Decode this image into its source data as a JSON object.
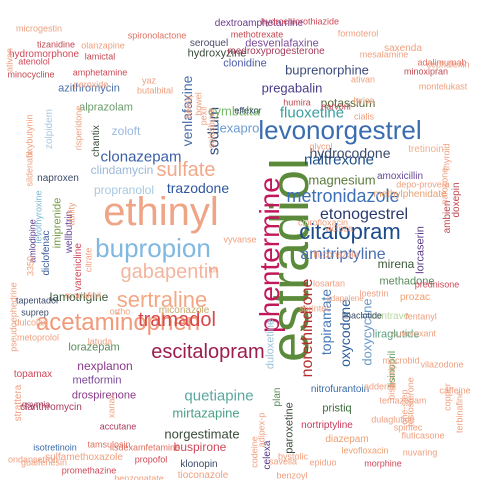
{
  "words": [
    {
      "text": "estradiol",
      "color": "#5a8a3a"
    },
    {
      "text": "ethinyl",
      "color": "#f0a486"
    },
    {
      "text": "levonorgestrel",
      "color": "#3a6db0"
    },
    {
      "text": "phentermine",
      "color": "#c2185b"
    },
    {
      "text": "bupropion",
      "color": "#80b8e0"
    },
    {
      "text": "gabapentin",
      "color": "#f2b6a0"
    },
    {
      "text": "acetaminophen",
      "color": "#f09a7a"
    },
    {
      "text": "sertraline",
      "color": "#f4a784"
    },
    {
      "text": "escitalopram",
      "color": "#9c1c4e"
    },
    {
      "text": "sulfate",
      "color": "#f2a98b"
    },
    {
      "text": "tramadol",
      "color": "#d94848"
    },
    {
      "text": "citalopram",
      "color": "#1a4a8a"
    },
    {
      "text": "etonogestrel",
      "color": "#2b3a6e"
    },
    {
      "text": "metronidazole",
      "color": "#3d6fb6"
    },
    {
      "text": "amitriptyline",
      "color": "#4a6fb0"
    },
    {
      "text": "trazodone",
      "color": "#2f57a0"
    },
    {
      "text": "clonazepam",
      "color": "#3a5fa8"
    },
    {
      "text": "naltrexone",
      "color": "#1f4f8c"
    },
    {
      "text": "hydrocodone",
      "color": "#3a4a6a"
    },
    {
      "text": "magnesium",
      "color": "#5a7a3a"
    },
    {
      "text": "topiramate",
      "color": "#4a7ab8"
    },
    {
      "text": "norethindrone",
      "color": "#b43030"
    },
    {
      "text": "oxycodone",
      "color": "#2d5d9a"
    },
    {
      "text": "doxycycline",
      "color": "#6a9ac8"
    },
    {
      "text": "fluoxetine",
      "color": "#3aa0a0"
    },
    {
      "text": "venlafaxine",
      "color": "#4a6fa8"
    },
    {
      "text": "sodium",
      "color": "#2b4a7a"
    },
    {
      "text": "lexapro",
      "color": "#6a9ad0"
    },
    {
      "text": "cymbalta",
      "color": "#7ab86a"
    },
    {
      "text": "pregabalin",
      "color": "#4a3a8a"
    },
    {
      "text": "buprenorphine",
      "color": "#3a4a7a"
    },
    {
      "text": "potassium",
      "color": "#5a6a3a"
    },
    {
      "text": "quetiapine",
      "color": "#5aa8a0"
    },
    {
      "text": "mirtazapine",
      "color": "#4aa088"
    },
    {
      "text": "norgestimate",
      "color": "#3a4a3a"
    },
    {
      "text": "lamotrigine",
      "color": "#3a5a3a"
    },
    {
      "text": "clindamycin",
      "color": "#9ab8d8"
    },
    {
      "text": "propranolol",
      "color": "#a8c8e0"
    },
    {
      "text": "lorazepam",
      "color": "#5a8a5a"
    },
    {
      "text": "nexplanon",
      "color": "#8a3a8a"
    },
    {
      "text": "metformin",
      "color": "#7a4a9a"
    },
    {
      "text": "buspirone",
      "color": "#d0485a"
    },
    {
      "text": "drospirenone",
      "color": "#8a3a8a"
    },
    {
      "text": "alprazolam",
      "color": "#6a9a6a"
    },
    {
      "text": "zoloft",
      "color": "#9ab8e0"
    },
    {
      "text": "azithromycin",
      "color": "#4a6fa8"
    },
    {
      "text": "hydroxyzine",
      "color": "#3a4a3a"
    },
    {
      "text": "clonidine",
      "color": "#4a5aa8"
    },
    {
      "text": "desvenlafaxine",
      "color": "#7a4a9a"
    },
    {
      "text": "seroquel",
      "color": "#4a4a6a"
    },
    {
      "text": "dextroamphetamine",
      "color": "#6a3a8a"
    },
    {
      "text": "medroxyprogesterone",
      "color": "#a83a5a"
    },
    {
      "text": "amoxicillin",
      "color": "#6a4a9a"
    },
    {
      "text": "methylphenidate",
      "color": "#e8a070"
    },
    {
      "text": "tretinoin",
      "color": "#f0b090"
    },
    {
      "text": "lorcaserin",
      "color": "#5a3a8a"
    },
    {
      "text": "mirena",
      "color": "#3a5a3a"
    },
    {
      "text": "methadone",
      "color": "#5a8a5a"
    },
    {
      "text": "prozac",
      "color": "#f0a070"
    },
    {
      "text": "contrave",
      "color": "#b8d8a0"
    },
    {
      "text": "liraglutide",
      "color": "#5aa080"
    },
    {
      "text": "lisinopril",
      "color": "#5a9a5a"
    },
    {
      "text": "nitrofurantoin",
      "color": "#3a6aa8"
    },
    {
      "text": "pristiq",
      "color": "#3a6a3a"
    },
    {
      "text": "nortriptyline",
      "color": "#c83a5a"
    },
    {
      "text": "diazepam",
      "color": "#f0a070"
    },
    {
      "text": "morphine",
      "color": "#d04858"
    },
    {
      "text": "levofloxacin",
      "color": "#f0a070"
    },
    {
      "text": "klonopin",
      "color": "#3a4a6a"
    },
    {
      "text": "propofol",
      "color": "#d04858"
    },
    {
      "text": "lisdexamfetamine",
      "color": "#e07060"
    },
    {
      "text": "tioconazole",
      "color": "#f0a080"
    },
    {
      "text": "celexa",
      "color": "#5a3a8a"
    },
    {
      "text": "paroxetine",
      "color": "#3a4a3a"
    },
    {
      "text": "plan",
      "color": "#5a8a5a"
    },
    {
      "text": "miconazole",
      "color": "#c8a868"
    },
    {
      "text": "duloxetine",
      "color": "#9ac0d8"
    },
    {
      "text": "varenicline",
      "color": "#d0485a"
    },
    {
      "text": "imiprenide",
      "color": "#7a9a4a"
    },
    {
      "text": "diclofenac",
      "color": "#3a5a9a"
    },
    {
      "text": "amlodipine",
      "color": "#5a3a8a"
    },
    {
      "text": "wellbutrin",
      "color": "#6a4a9a"
    },
    {
      "text": "levothyroxine",
      "color": "#7ab8d8"
    },
    {
      "text": "naproxen",
      "color": "#3a4a6a"
    },
    {
      "text": "chantix",
      "color": "#3a4a3a"
    },
    {
      "text": "zolpidem",
      "color": "#a8c8e0"
    },
    {
      "text": "doxepin",
      "color": "#c04850"
    },
    {
      "text": "qsymia",
      "color": "#a83a5a"
    },
    {
      "text": "clarithromycin",
      "color": "#a83a5a"
    },
    {
      "text": "isotretinoin",
      "color": "#3a6aa8"
    },
    {
      "text": "sulfamethoxazole",
      "color": "#f0a080"
    },
    {
      "text": "guaifenesin",
      "color": "#f0a080"
    },
    {
      "text": "promethazine",
      "color": "#d04858"
    },
    {
      "text": "accutane",
      "color": "#a83a5a"
    },
    {
      "text": "tamsulosin",
      "color": "#e07060"
    },
    {
      "text": "benzonatate",
      "color": "#f0a080"
    },
    {
      "text": "ondansetron",
      "color": "#f0a080"
    },
    {
      "text": "tapentadol",
      "color": "#3a4a6a"
    },
    {
      "text": "metoprolol",
      "color": "#f0a080"
    },
    {
      "text": "topamax",
      "color": "#d04858"
    },
    {
      "text": "strattera",
      "color": "#f0a080"
    },
    {
      "text": "suprep",
      "color": "#3a4a6a"
    },
    {
      "text": "hydromorphone",
      "color": "#d04858"
    },
    {
      "text": "microgestin",
      "color": "#f0a080"
    },
    {
      "text": "tizanidine",
      "color": "#c04850"
    },
    {
      "text": "atenolol",
      "color": "#d04858"
    },
    {
      "text": "minocycline",
      "color": "#c04850"
    },
    {
      "text": "olanzapine",
      "color": "#f0a080"
    },
    {
      "text": "lamictal",
      "color": "#c04850"
    },
    {
      "text": "amphetamine",
      "color": "#d04858"
    },
    {
      "text": "peroxide",
      "color": "#f0a080"
    },
    {
      "text": "spironolactone",
      "color": "#e07060"
    },
    {
      "text": "methotrexate",
      "color": "#c04850"
    },
    {
      "text": "hydrochlorothiazide",
      "color": "#d04858"
    },
    {
      "text": "formoterol",
      "color": "#f0a080"
    },
    {
      "text": "mesalamine",
      "color": "#f0a080"
    },
    {
      "text": "adalimumab",
      "color": "#e07060"
    },
    {
      "text": "montelukast",
      "color": "#f0a080"
    },
    {
      "text": "saxenda",
      "color": "#f0a080"
    },
    {
      "text": "minoxipran",
      "color": "#c04850"
    },
    {
      "text": "cephalexin",
      "color": "#f0a080"
    },
    {
      "text": "ativan",
      "color": "#f0a080"
    },
    {
      "text": "lyrica",
      "color": "#f0a080"
    },
    {
      "text": "narvoni",
      "color": "#c04850"
    },
    {
      "text": "humira",
      "color": "#c04850"
    },
    {
      "text": "effexor",
      "color": "#3a4a6a"
    },
    {
      "text": "belviq",
      "color": "#f0a080"
    },
    {
      "text": "bowel",
      "color": "#f0a080"
    },
    {
      "text": "pexil",
      "color": "#f0a080"
    },
    {
      "text": "xanax",
      "color": "#f0a080"
    },
    {
      "text": "kit",
      "color": "#f0a080"
    },
    {
      "text": "ortho",
      "color": "#f0a080"
    },
    {
      "text": "latuda",
      "color": "#f0a080"
    },
    {
      "text": "dulcolax",
      "color": "#f0a080"
    },
    {
      "text": "modafinil",
      "color": "#f0a080"
    },
    {
      "text": "3350",
      "color": "#f0a080"
    },
    {
      "text": "adapalene",
      "color": "#f0a080"
    },
    {
      "text": "linaclotide",
      "color": "#3a4a6a"
    },
    {
      "text": "suvorexant",
      "color": "#f0a080"
    },
    {
      "text": "fentanyl",
      "color": "#f0a080"
    },
    {
      "text": "prednisone",
      "color": "#d04858"
    },
    {
      "text": "ambien",
      "color": "#c04850"
    },
    {
      "text": "depo-provera",
      "color": "#f0a080"
    },
    {
      "text": "naloxone",
      "color": "#f0a080"
    },
    {
      "text": "thyroid",
      "color": "#f0a080"
    },
    {
      "text": "vilazodone",
      "color": "#f0a080"
    },
    {
      "text": "copper",
      "color": "#f0a080"
    },
    {
      "text": "caffeine",
      "color": "#f0a080"
    },
    {
      "text": "terbinafine",
      "color": "#f0a080"
    },
    {
      "text": "spiritec",
      "color": "#f0a080"
    },
    {
      "text": "fluticasone",
      "color": "#f0a080"
    },
    {
      "text": "nuvaring",
      "color": "#f0a080"
    },
    {
      "text": "dulaglutide",
      "color": "#f0a080"
    },
    {
      "text": "temazepam",
      "color": "#f0a080"
    },
    {
      "text": "testosterone",
      "color": "#f0a080"
    },
    {
      "text": "bisacodyl",
      "color": "#f0a080"
    },
    {
      "text": "adderall",
      "color": "#f0a080"
    },
    {
      "text": "macrobid",
      "color": "#f0a080"
    },
    {
      "text": "one-step",
      "color": "#f0a080"
    },
    {
      "text": "glycol",
      "color": "#f0a080"
    },
    {
      "text": "ciprofloxacin",
      "color": "#f0a080"
    },
    {
      "text": "victoza",
      "color": "#f0a080"
    },
    {
      "text": "losartan",
      "color": "#f0a080"
    },
    {
      "text": "fluconazole",
      "color": "#f0a080"
    },
    {
      "text": "loestrin",
      "color": "#f0a080"
    },
    {
      "text": "sprintec",
      "color": "#f0a080"
    },
    {
      "text": "yaz",
      "color": "#f0a080"
    },
    {
      "text": "butalbital",
      "color": "#f0a080"
    },
    {
      "text": "solosbuvir",
      "color": "#f0a080"
    },
    {
      "text": "cialis",
      "color": "#f0a080"
    },
    {
      "text": "ativan",
      "color": "#f0a080"
    },
    {
      "text": "pseudoephedrine",
      "color": "#f0a080"
    },
    {
      "text": "oxybutynin",
      "color": "#f0a080"
    },
    {
      "text": "sildenafil",
      "color": "#f0a080"
    },
    {
      "text": "risperidone",
      "color": "#f0a080"
    },
    {
      "text": "citrate",
      "color": "#f0a080"
    },
    {
      "text": "ability",
      "color": "#f0a080"
    },
    {
      "text": "bystolic",
      "color": "#f0a080"
    },
    {
      "text": "epiduo",
      "color": "#f0a080"
    },
    {
      "text": "adipex-p",
      "color": "#f0a080"
    },
    {
      "text": "savella",
      "color": "#f0a080"
    },
    {
      "text": "codeine",
      "color": "#f0a080"
    },
    {
      "text": "benzoyl",
      "color": "#f0a080"
    },
    {
      "text": "vyvanse",
      "color": "#f0a080"
    }
  ]
}
